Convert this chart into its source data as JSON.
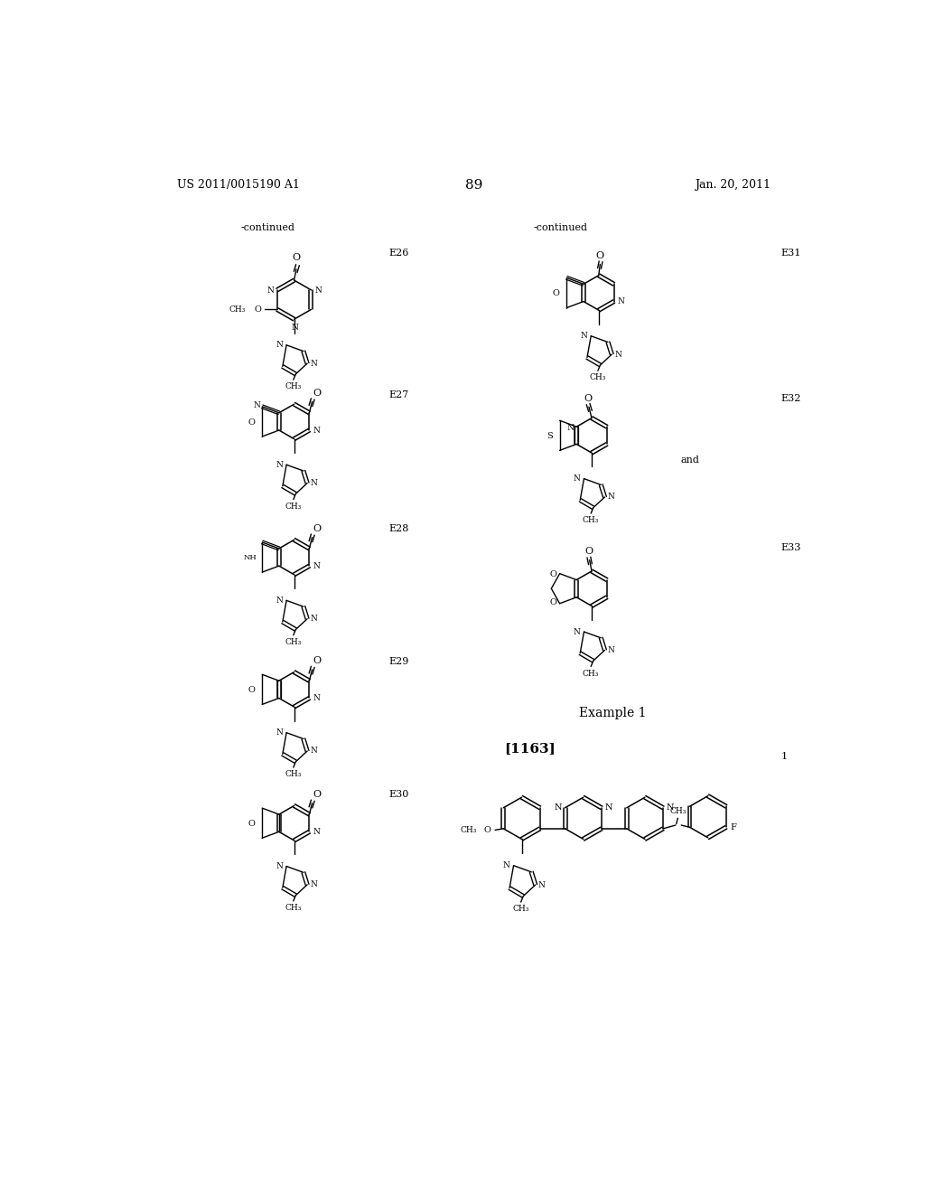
{
  "page_number": "89",
  "patent_number": "US 2011/0015190 A1",
  "patent_date": "Jan. 20, 2011",
  "background_color": "#ffffff",
  "text_color": "#000000",
  "header_fontsize": 9,
  "page_num_fontsize": 11,
  "label_fontsize": 8,
  "continued_text": "-continued",
  "example_label": "Example 1",
  "paragraph_label": "[1163]",
  "left_labels": [
    "E26",
    "E27",
    "E28",
    "E29",
    "E30"
  ],
  "right_labels": [
    "E31",
    "E32",
    "E33"
  ],
  "and_text": "and"
}
